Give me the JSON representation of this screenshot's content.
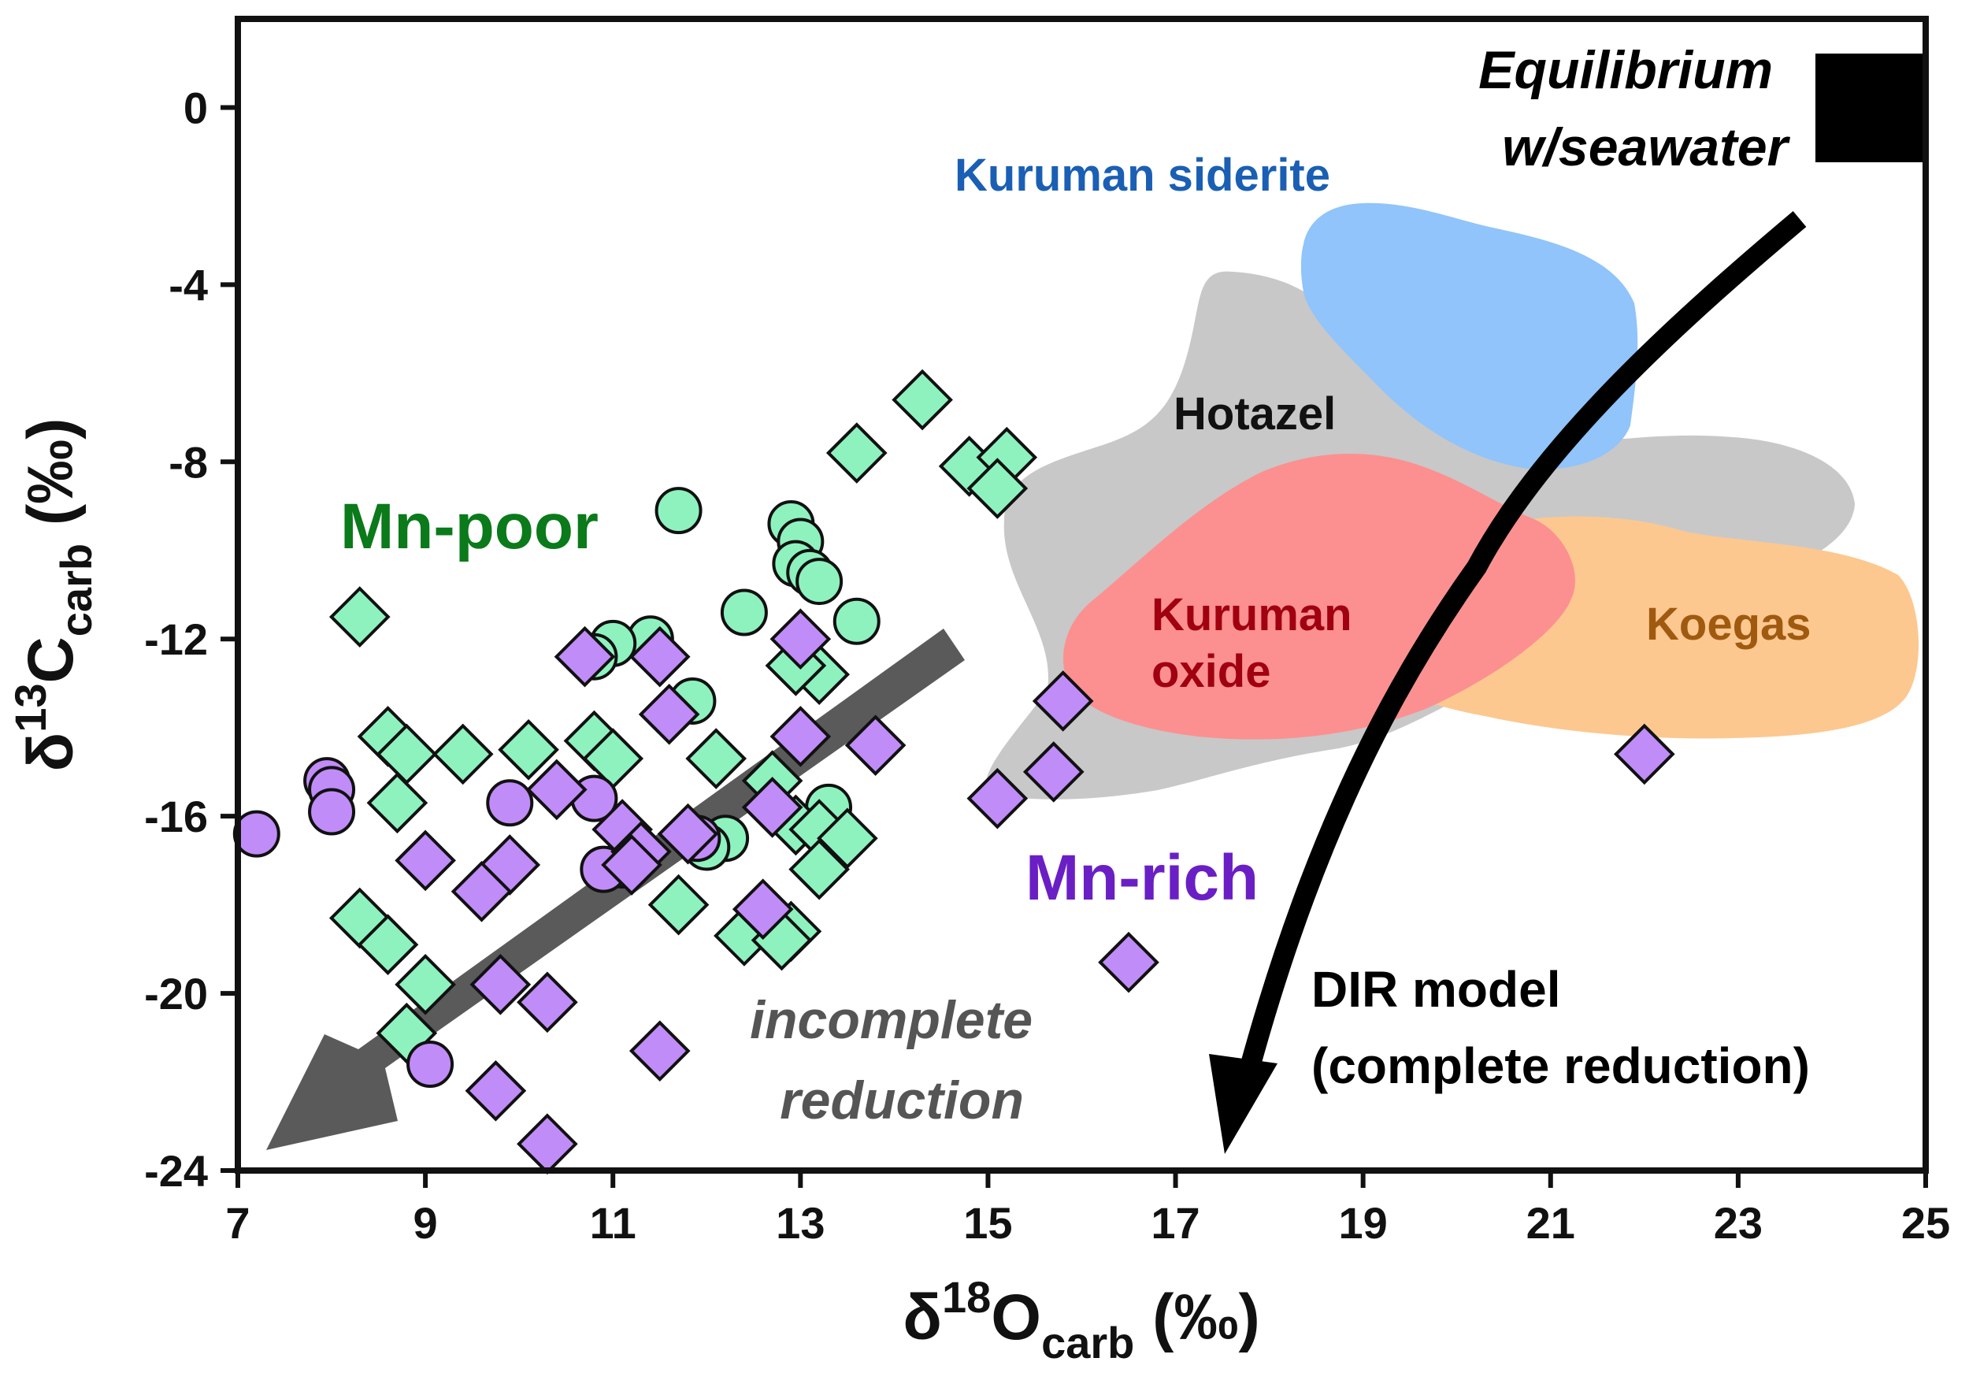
{
  "chart_data": {
    "type": "scatter",
    "xlabel": {
      "main": "δ",
      "sup": "18",
      "base": "O",
      "sub": "carb",
      "unit": " (‰)"
    },
    "ylabel": {
      "main": "δ",
      "sup": "13",
      "base": "C",
      "sub": "carb",
      "unit": " (‰)"
    },
    "xlim": [
      7,
      25
    ],
    "ylim": [
      -24,
      2
    ],
    "xticks": [
      "7",
      "9",
      "11",
      "13",
      "15",
      "17",
      "19",
      "21",
      "23",
      "25"
    ],
    "yticks": [
      "0",
      "-4",
      "-8",
      "-12",
      "-16",
      "-20",
      "-24"
    ],
    "grid": false,
    "colors": {
      "mn_poor_fill": "#8ef2bf",
      "mn_rich_fill": "#c08cf8",
      "marker_stroke": "#111111",
      "mn_poor_text": "#0a7a1a",
      "mn_rich_text": "#6a1fc4",
      "kuruman_siderite_fill": "#90c4fa",
      "kuruman_siderite_text": "#1a5fb4",
      "hotazel_fill": "#c8c8c8",
      "hotazel_text": "#111111",
      "kuruman_oxide_fill": "#fc9090",
      "kuruman_oxide_text": "#a00010",
      "koegas_fill": "#fcc890",
      "koegas_text": "#a05a10",
      "trend_arrow": "#5a5a5a",
      "dir_arrow": "#000000"
    },
    "regions": [
      {
        "name": "Hotazel",
        "lines": [
          "Hotazel"
        ]
      },
      {
        "name": "Kuruman siderite",
        "lines": [
          "Kuruman siderite"
        ]
      },
      {
        "name": "Kuruman oxide",
        "lines": [
          "Kuruman",
          "oxide"
        ]
      },
      {
        "name": "Koegas",
        "lines": [
          "Koegas"
        ]
      }
    ],
    "group_labels": {
      "mn_poor": "Mn-poor",
      "mn_rich": "Mn-rich"
    },
    "annotations": {
      "equilibrium": [
        "Equilibrium",
        "w/seawater"
      ],
      "dir_model": [
        "DIR model",
        "(complete reduction)"
      ],
      "incomplete": [
        "incomplete",
        "reduction"
      ]
    },
    "series": [
      {
        "name": "Mn-poor",
        "marker": "circle",
        "points": [
          [
            11.7,
            -9.1
          ],
          [
            12.9,
            -9.4
          ],
          [
            13.0,
            -9.8
          ],
          [
            12.95,
            -10.3
          ],
          [
            13.1,
            -10.5
          ],
          [
            13.2,
            -10.7
          ],
          [
            13.6,
            -11.6
          ],
          [
            12.4,
            -11.4
          ],
          [
            11.4,
            -12.0
          ],
          [
            11.0,
            -12.1
          ],
          [
            10.8,
            -12.4
          ],
          [
            11.85,
            -13.4
          ],
          [
            12.2,
            -16.5
          ],
          [
            12.0,
            -16.7
          ],
          [
            13.3,
            -15.8
          ],
          [
            11.1,
            -17.1
          ]
        ]
      },
      {
        "name": "Mn-poor",
        "marker": "diamond",
        "points": [
          [
            14.3,
            -6.6
          ],
          [
            13.6,
            -7.8
          ],
          [
            14.8,
            -8.1
          ],
          [
            15.2,
            -7.9
          ],
          [
            15.1,
            -8.6
          ],
          [
            8.3,
            -11.5
          ],
          [
            13.2,
            -12.8
          ],
          [
            12.95,
            -12.6
          ],
          [
            8.6,
            -14.2
          ],
          [
            8.8,
            -14.6
          ],
          [
            9.4,
            -14.6
          ],
          [
            10.1,
            -14.5
          ],
          [
            10.8,
            -14.3
          ],
          [
            11.0,
            -14.7
          ],
          [
            12.1,
            -14.7
          ],
          [
            12.7,
            -15.2
          ],
          [
            8.7,
            -15.7
          ],
          [
            12.95,
            -16.2
          ],
          [
            13.2,
            -16.3
          ],
          [
            13.5,
            -16.5
          ],
          [
            13.2,
            -17.2
          ],
          [
            11.7,
            -18.0
          ],
          [
            12.4,
            -18.7
          ],
          [
            12.9,
            -18.6
          ],
          [
            12.8,
            -18.8
          ],
          [
            8.3,
            -18.3
          ],
          [
            8.6,
            -18.9
          ],
          [
            9.0,
            -19.8
          ],
          [
            8.8,
            -20.9
          ]
        ]
      },
      {
        "name": "Mn-rich",
        "marker": "circle",
        "points": [
          [
            7.2,
            -16.4
          ],
          [
            7.95,
            -15.2
          ],
          [
            8.0,
            -15.4
          ],
          [
            8.0,
            -15.9
          ],
          [
            9.9,
            -15.7
          ],
          [
            10.8,
            -15.6
          ],
          [
            10.9,
            -17.2
          ],
          [
            9.05,
            -21.6
          ],
          [
            11.9,
            -16.5
          ]
        ]
      },
      {
        "name": "Mn-rich",
        "marker": "diamond",
        "points": [
          [
            10.7,
            -12.4
          ],
          [
            11.5,
            -12.4
          ],
          [
            13.0,
            -12.0
          ],
          [
            15.8,
            -13.4
          ],
          [
            11.6,
            -13.7
          ],
          [
            13.0,
            -14.2
          ],
          [
            13.8,
            -14.4
          ],
          [
            15.7,
            -15.0
          ],
          [
            15.1,
            -15.6
          ],
          [
            22.0,
            -14.6
          ],
          [
            10.4,
            -15.4
          ],
          [
            12.7,
            -15.8
          ],
          [
            11.1,
            -16.3
          ],
          [
            11.3,
            -16.8
          ],
          [
            11.2,
            -17.1
          ],
          [
            11.8,
            -16.4
          ],
          [
            9.0,
            -17.0
          ],
          [
            9.9,
            -17.1
          ],
          [
            9.6,
            -17.7
          ],
          [
            12.6,
            -18.1
          ],
          [
            16.5,
            -19.3
          ],
          [
            9.8,
            -19.8
          ],
          [
            10.3,
            -20.2
          ],
          [
            11.5,
            -21.3
          ],
          [
            9.75,
            -22.2
          ],
          [
            10.3,
            -23.4
          ]
        ]
      }
    ]
  }
}
